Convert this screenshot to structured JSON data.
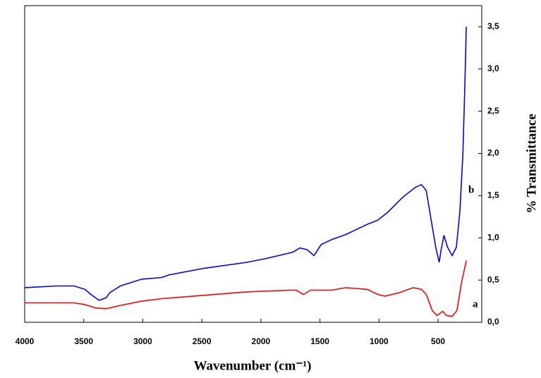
{
  "chart_data": {
    "type": "line",
    "xlabel": "Wavenumber (cm⁻¹)",
    "ylabel": "% Transmittance",
    "annotations": [
      "a",
      "b"
    ],
    "xlim": [
      4000,
      130
    ],
    "xticks": [
      4000,
      3500,
      3000,
      2500,
      2000,
      1500,
      1000,
      500
    ],
    "ylim": [
      0,
      3.75
    ],
    "yticks": [
      {
        "value": 0,
        "label": "0,0"
      },
      {
        "value": 0.5,
        "label": "0,5"
      },
      {
        "value": 1,
        "label": "1,0"
      },
      {
        "value": 1.5,
        "label": "1,5"
      },
      {
        "value": 2,
        "label": "2,0"
      },
      {
        "value": 2.5,
        "label": "2,5"
      },
      {
        "value": 3,
        "label": "3,0"
      },
      {
        "value": 3.5,
        "label": "3,5"
      }
    ],
    "series": [
      {
        "color": "#ff0000",
        "x": [
          4000,
          3580,
          3490,
          3400,
          3310,
          3190,
          3010,
          2840,
          2480,
          2120,
          1760,
          1700,
          1640,
          1580,
          1490,
          1400,
          1280,
          1100,
          1010,
          950,
          830,
          710,
          640,
          600,
          550,
          510,
          460,
          430,
          380,
          340,
          300,
          260
        ],
        "values": [
          0.23,
          0.23,
          0.21,
          0.17,
          0.16,
          0.2,
          0.25,
          0.28,
          0.32,
          0.36,
          0.38,
          0.38,
          0.33,
          0.38,
          0.38,
          0.38,
          0.41,
          0.39,
          0.33,
          0.31,
          0.35,
          0.41,
          0.39,
          0.33,
          0.14,
          0.08,
          0.13,
          0.08,
          0.07,
          0.14,
          0.48,
          0.73
        ]
      },
      {
        "color": "#0000ff",
        "x": [
          4000,
          3730,
          3580,
          3490,
          3440,
          3370,
          3310,
          3280,
          3190,
          3010,
          2840,
          2780,
          2480,
          2120,
          1940,
          1730,
          1670,
          1610,
          1550,
          1490,
          1400,
          1280,
          1220,
          1100,
          1010,
          920,
          800,
          690,
          640,
          600,
          570,
          520,
          490,
          475,
          450,
          420,
          380,
          345,
          315,
          290,
          273,
          261
        ],
        "values": [
          0.41,
          0.43,
          0.43,
          0.39,
          0.33,
          0.26,
          0.29,
          0.35,
          0.43,
          0.51,
          0.53,
          0.56,
          0.64,
          0.71,
          0.76,
          0.83,
          0.88,
          0.86,
          0.79,
          0.92,
          0.98,
          1.04,
          1.08,
          1.16,
          1.21,
          1.31,
          1.48,
          1.6,
          1.63,
          1.56,
          1.31,
          0.89,
          0.71,
          0.85,
          1.03,
          0.89,
          0.79,
          0.89,
          1.31,
          1.98,
          2.82,
          3.5
        ]
      }
    ]
  }
}
